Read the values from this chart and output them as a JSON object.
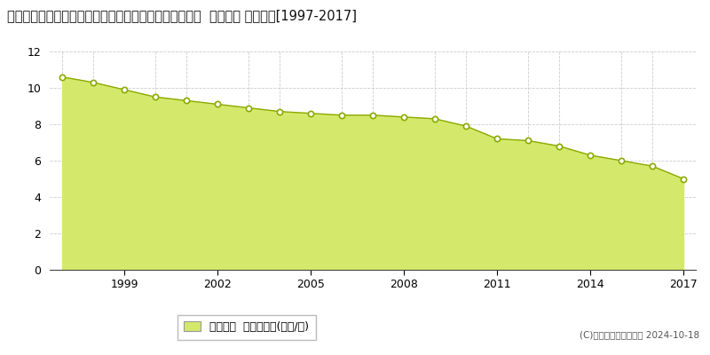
{
  "title": "宮崎県児湯郡都農町大字川北字都農中町４８６３番１内  基準地価 地価推移[1997-2017]",
  "years": [
    1997,
    1998,
    1999,
    2000,
    2001,
    2002,
    2003,
    2004,
    2005,
    2006,
    2007,
    2008,
    2009,
    2010,
    2011,
    2012,
    2013,
    2014,
    2015,
    2016,
    2017
  ],
  "values": [
    10.6,
    10.3,
    9.9,
    9.5,
    9.3,
    9.1,
    8.9,
    8.7,
    8.6,
    8.5,
    8.5,
    8.4,
    8.3,
    7.9,
    7.2,
    7.1,
    6.8,
    6.3,
    6.0,
    5.7,
    5.0
  ],
  "fill_color": "#d4e96b",
  "line_color": "#8aaa00",
  "marker_face": "#ffffff",
  "marker_edge": "#8aaa00",
  "background_color": "#ffffff",
  "grid_color": "#cccccc",
  "ylim": [
    0,
    12
  ],
  "yticks": [
    0,
    2,
    4,
    6,
    8,
    10,
    12
  ],
  "xticks": [
    1999,
    2002,
    2005,
    2008,
    2011,
    2014,
    2017
  ],
  "legend_label": "基準地価  平均坪単価(万円/坪)",
  "copyright_text": "(C)土地価格ドットコム 2024-10-18",
  "title_fontsize": 10.5,
  "tick_fontsize": 9,
  "legend_fontsize": 9
}
